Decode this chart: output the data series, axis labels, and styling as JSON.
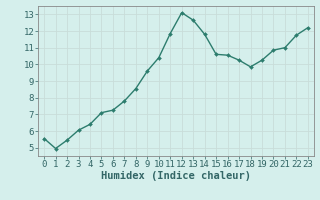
{
  "x": [
    0,
    1,
    2,
    3,
    4,
    5,
    6,
    7,
    8,
    9,
    10,
    11,
    12,
    13,
    14,
    15,
    16,
    17,
    18,
    19,
    20,
    21,
    22,
    23
  ],
  "y": [
    5.55,
    4.95,
    5.45,
    6.05,
    6.4,
    7.1,
    7.25,
    7.8,
    8.55,
    9.6,
    10.4,
    11.85,
    13.1,
    12.65,
    11.8,
    10.6,
    10.55,
    10.25,
    9.85,
    10.25,
    10.85,
    11.0,
    11.75,
    12.2
  ],
  "line_color": "#2d7d6e",
  "marker": "D",
  "marker_size": 2.0,
  "bg_color": "#d5efec",
  "grid_color": "#c8ddd9",
  "xlabel": "Humidex (Indice chaleur)",
  "xlim": [
    -0.5,
    23.5
  ],
  "ylim": [
    4.5,
    13.5
  ],
  "yticks": [
    5,
    6,
    7,
    8,
    9,
    10,
    11,
    12,
    13
  ],
  "xticks": [
    0,
    1,
    2,
    3,
    4,
    5,
    6,
    7,
    8,
    9,
    10,
    11,
    12,
    13,
    14,
    15,
    16,
    17,
    18,
    19,
    20,
    21,
    22,
    23
  ],
  "xlabel_fontsize": 7.5,
  "tick_fontsize": 6.5,
  "axis_color": "#336666",
  "line_width": 1.0,
  "spine_color": "#888888"
}
